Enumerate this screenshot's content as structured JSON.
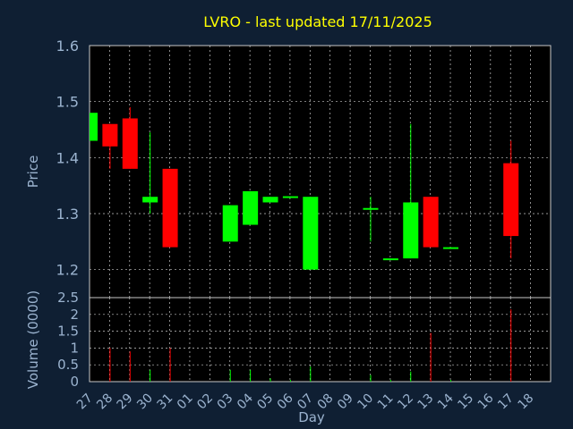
{
  "colors": {
    "background": "#0f1f33",
    "panel": "#000000",
    "grid": "#c8c8c8",
    "up": "#00ff00",
    "down": "#ff0000",
    "title": "#ffff00",
    "axis_text": "#9bb3cf"
  },
  "chart_data": {
    "type": "candlestick",
    "title": "LVRO - last updated 17/11/2025",
    "xlabel": "Day",
    "price": {
      "ylabel": "Price",
      "ylim": [
        1.15,
        1.6
      ],
      "yticks": [
        "1.6",
        "1.5",
        "1.4",
        "1.3",
        "1.2"
      ]
    },
    "volume": {
      "ylabel": "Volume (0000)",
      "ylim": [
        0,
        2.5
      ],
      "yticks": [
        "2.5",
        "2",
        "1.5",
        "1",
        "0.5",
        "0"
      ]
    },
    "x_ticks": [
      "27",
      "28",
      "29",
      "30",
      "31",
      "01",
      "02",
      "03",
      "04",
      "05",
      "06",
      "07",
      "08",
      "09",
      "10",
      "11",
      "12",
      "13",
      "14",
      "15",
      "16",
      "17",
      "18"
    ],
    "grid": true,
    "candles": [
      {
        "day": "27",
        "open": 1.43,
        "high": 1.48,
        "low": 1.43,
        "close": 1.48,
        "volume": 0
      },
      {
        "day": "28",
        "open": 1.46,
        "high": 1.46,
        "low": 1.38,
        "close": 1.42,
        "volume": 1.0
      },
      {
        "day": "29",
        "open": 1.47,
        "high": 1.49,
        "low": 1.38,
        "close": 1.38,
        "volume": 0.9
      },
      {
        "day": "30",
        "open": 1.32,
        "high": 1.445,
        "low": 1.3,
        "close": 1.33,
        "volume": 0.35
      },
      {
        "day": "31",
        "open": 1.38,
        "high": 1.38,
        "low": 1.24,
        "close": 1.24,
        "volume": 1.0
      },
      {
        "day": "03",
        "open": 1.25,
        "high": 1.315,
        "low": 1.25,
        "close": 1.315,
        "volume": 0.35
      },
      {
        "day": "04",
        "open": 1.28,
        "high": 1.34,
        "low": 1.28,
        "close": 1.34,
        "volume": 0.35
      },
      {
        "day": "05",
        "open": 1.32,
        "high": 1.33,
        "low": 1.32,
        "close": 1.33,
        "volume": 0.1
      },
      {
        "day": "06",
        "open": 1.33,
        "high": 1.33,
        "low": 1.328,
        "close": 1.331,
        "volume": 0.05
      },
      {
        "day": "07",
        "open": 1.2,
        "high": 1.33,
        "low": 1.2,
        "close": 1.33,
        "volume": 0.45
      },
      {
        "day": "10",
        "open": 1.31,
        "high": 1.33,
        "low": 1.25,
        "close": 1.31,
        "volume": 0.2
      },
      {
        "day": "11",
        "open": 1.219,
        "high": 1.22,
        "low": 1.218,
        "close": 1.22,
        "volume": 0.05
      },
      {
        "day": "12",
        "open": 1.22,
        "high": 1.46,
        "low": 1.22,
        "close": 1.32,
        "volume": 0.3
      },
      {
        "day": "13",
        "open": 1.33,
        "high": 1.33,
        "low": 1.24,
        "close": 1.24,
        "volume": 1.45
      },
      {
        "day": "14",
        "open": 1.239,
        "high": 1.24,
        "low": 1.238,
        "close": 1.24,
        "volume": 0.05
      },
      {
        "day": "17",
        "open": 1.39,
        "high": 1.43,
        "low": 1.22,
        "close": 1.26,
        "volume": 2.15
      }
    ]
  }
}
